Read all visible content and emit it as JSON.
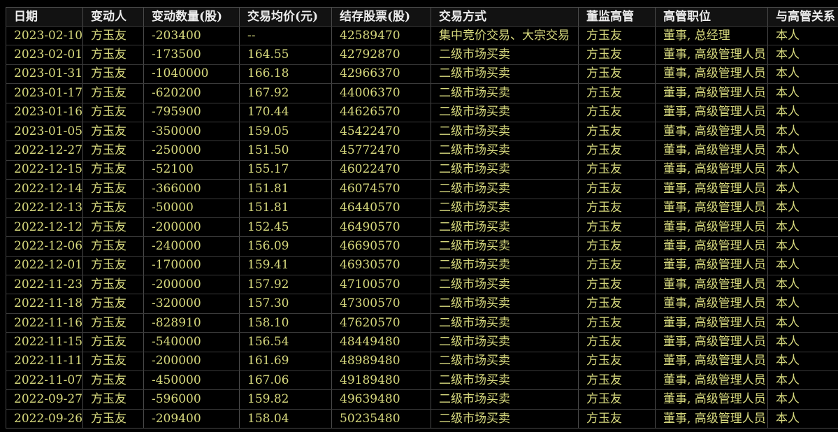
{
  "colors": {
    "background": "#000000",
    "header_background": "#121212",
    "header_text": "#ededed",
    "data_text": "#d8da7e",
    "grid_vertical": "#4a4a4a",
    "grid_horizontal": "#3a3a3a"
  },
  "table": {
    "columns": [
      "日期",
      "变动人",
      "变动数量(股)",
      "交易均价(元)",
      "结存股票(股)",
      "交易方式",
      "董监高管",
      "高管职位",
      "与高管关系"
    ],
    "rows": [
      [
        "2023-02-10",
        "方玉友",
        "-203400",
        "--",
        "42589470",
        "集中竞价交易、大宗交易",
        "方玉友",
        "董事, 总经理",
        "本人"
      ],
      [
        "2023-02-01",
        "方玉友",
        "-173500",
        "164.55",
        "42792870",
        "二级市场买卖",
        "方玉友",
        "董事, 高级管理人员",
        "本人"
      ],
      [
        "2023-01-31",
        "方玉友",
        "-1040000",
        "166.18",
        "42966370",
        "二级市场买卖",
        "方玉友",
        "董事, 高级管理人员",
        "本人"
      ],
      [
        "2023-01-17",
        "方玉友",
        "-620200",
        "167.92",
        "44006370",
        "二级市场买卖",
        "方玉友",
        "董事, 高级管理人员",
        "本人"
      ],
      [
        "2023-01-16",
        "方玉友",
        "-795900",
        "170.44",
        "44626570",
        "二级市场买卖",
        "方玉友",
        "董事, 高级管理人员",
        "本人"
      ],
      [
        "2023-01-05",
        "方玉友",
        "-350000",
        "159.05",
        "45422470",
        "二级市场买卖",
        "方玉友",
        "董事, 高级管理人员",
        "本人"
      ],
      [
        "2022-12-27",
        "方玉友",
        "-250000",
        "151.50",
        "45772470",
        "二级市场买卖",
        "方玉友",
        "董事, 高级管理人员",
        "本人"
      ],
      [
        "2022-12-15",
        "方玉友",
        "-52100",
        "155.17",
        "46022470",
        "二级市场买卖",
        "方玉友",
        "董事, 高级管理人员",
        "本人"
      ],
      [
        "2022-12-14",
        "方玉友",
        "-366000",
        "151.81",
        "46074570",
        "二级市场买卖",
        "方玉友",
        "董事, 高级管理人员",
        "本人"
      ],
      [
        "2022-12-13",
        "方玉友",
        "-50000",
        "151.81",
        "46440570",
        "二级市场买卖",
        "方玉友",
        "董事, 高级管理人员",
        "本人"
      ],
      [
        "2022-12-12",
        "方玉友",
        "-200000",
        "152.45",
        "46490570",
        "二级市场买卖",
        "方玉友",
        "董事, 高级管理人员",
        "本人"
      ],
      [
        "2022-12-06",
        "方玉友",
        "-240000",
        "156.09",
        "46690570",
        "二级市场买卖",
        "方玉友",
        "董事, 高级管理人员",
        "本人"
      ],
      [
        "2022-12-01",
        "方玉友",
        "-170000",
        "159.41",
        "46930570",
        "二级市场买卖",
        "方玉友",
        "董事, 高级管理人员",
        "本人"
      ],
      [
        "2022-11-23",
        "方玉友",
        "-200000",
        "157.92",
        "47100570",
        "二级市场买卖",
        "方玉友",
        "董事, 高级管理人员",
        "本人"
      ],
      [
        "2022-11-18",
        "方玉友",
        "-320000",
        "157.30",
        "47300570",
        "二级市场买卖",
        "方玉友",
        "董事, 高级管理人员",
        "本人"
      ],
      [
        "2022-11-16",
        "方玉友",
        "-828910",
        "158.10",
        "47620570",
        "二级市场买卖",
        "方玉友",
        "董事, 高级管理人员",
        "本人"
      ],
      [
        "2022-11-15",
        "方玉友",
        "-540000",
        "156.54",
        "48449480",
        "二级市场买卖",
        "方玉友",
        "董事, 高级管理人员",
        "本人"
      ],
      [
        "2022-11-11",
        "方玉友",
        "-200000",
        "161.69",
        "48989480",
        "二级市场买卖",
        "方玉友",
        "董事, 高级管理人员",
        "本人"
      ],
      [
        "2022-11-07",
        "方玉友",
        "-450000",
        "167.06",
        "49189480",
        "二级市场买卖",
        "方玉友",
        "董事, 高级管理人员",
        "本人"
      ],
      [
        "2022-09-27",
        "方玉友",
        "-596000",
        "159.82",
        "49639480",
        "二级市场买卖",
        "方玉友",
        "董事, 高级管理人员",
        "本人"
      ],
      [
        "2022-09-26",
        "方玉友",
        "-209400",
        "158.04",
        "50235480",
        "二级市场买卖",
        "方玉友",
        "董事, 高级管理人员",
        "本人"
      ]
    ]
  }
}
